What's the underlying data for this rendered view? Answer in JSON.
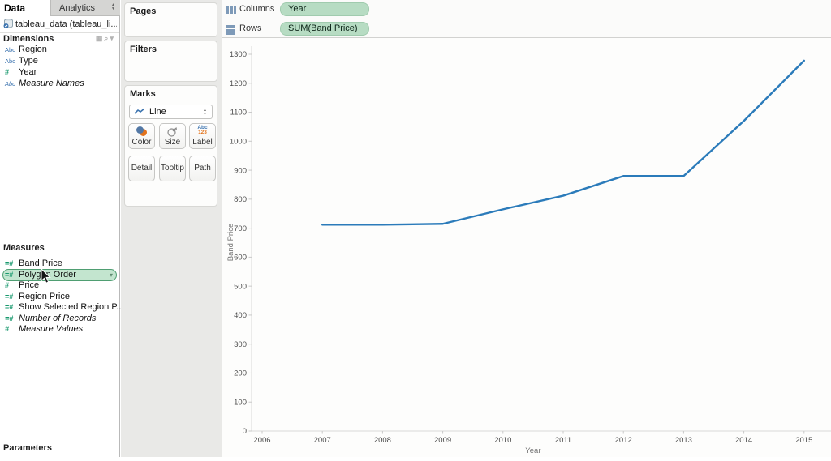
{
  "icons": {
    "caret_down": "▾",
    "grid": "▦",
    "search": "⌕",
    "stepper_up": "▲",
    "stepper_down": "▼"
  },
  "left_pane": {
    "tabs": {
      "data": "Data",
      "analytics": "Analytics"
    },
    "datasource": "tableau_data (tableau_li...",
    "dimensions": {
      "header": "Dimensions",
      "items": [
        {
          "icon": "Abc",
          "label": "Region"
        },
        {
          "icon": "Abc",
          "label": "Type"
        },
        {
          "icon": "#",
          "label": "Year"
        },
        {
          "icon": "Abc",
          "label": "Measure Names"
        }
      ]
    },
    "measures": {
      "header": "Measures",
      "items": [
        {
          "icon": "=#",
          "label": "Band Price"
        },
        {
          "icon": "=#",
          "label": "Polygon Order",
          "selected": true
        },
        {
          "icon": "#",
          "label": "Price"
        },
        {
          "icon": "=#",
          "label": "Region Price"
        },
        {
          "icon": "=#",
          "label": "Show Selected Region P..."
        },
        {
          "icon": "=#",
          "label": "Number of Records"
        },
        {
          "icon": "#",
          "label": "Measure Values"
        }
      ]
    },
    "parameters_header": "Parameters"
  },
  "cards": {
    "pages_label": "Pages",
    "filters_label": "Filters",
    "marks": {
      "header": "Marks",
      "mark_type": "Line",
      "color_label": "Color",
      "size_label": "Size",
      "label_label": "Label",
      "detail_label": "Detail",
      "tooltip_label": "Tooltip",
      "path_label": "Path",
      "label_icon_line1": "Abc",
      "label_icon_line2": "123"
    }
  },
  "shelves": {
    "columns_label": "Columns",
    "rows_label": "Rows",
    "columns_pill": "Year",
    "rows_pill": "SUM(Band Price)"
  },
  "chart_data": {
    "type": "line",
    "title": "",
    "xlabel": "Year",
    "ylabel": "Band Price",
    "x": [
      2007,
      2008,
      2009,
      2010,
      2011,
      2012,
      2013,
      2014,
      2015
    ],
    "values": [
      712,
      712,
      715,
      765,
      812,
      880,
      880,
      1070,
      1278
    ],
    "xticks": [
      2006,
      2007,
      2008,
      2009,
      2010,
      2011,
      2012,
      2013,
      2014,
      2015
    ],
    "yticks": [
      0,
      100,
      200,
      300,
      400,
      500,
      600,
      700,
      800,
      900,
      1000,
      1100,
      1200,
      1300
    ],
    "xlim": [
      2006,
      2015.5
    ],
    "ylim": [
      0,
      1300
    ],
    "grid": false,
    "legend": false,
    "line_color": "#2b7bba"
  },
  "colors": {
    "pill_green": "#b7dcc3",
    "selected_pill_border": "#4f9e72",
    "dimension_blue": "#3b73af",
    "measure_green": "#17986d",
    "line_blue": "#2b7bba"
  }
}
